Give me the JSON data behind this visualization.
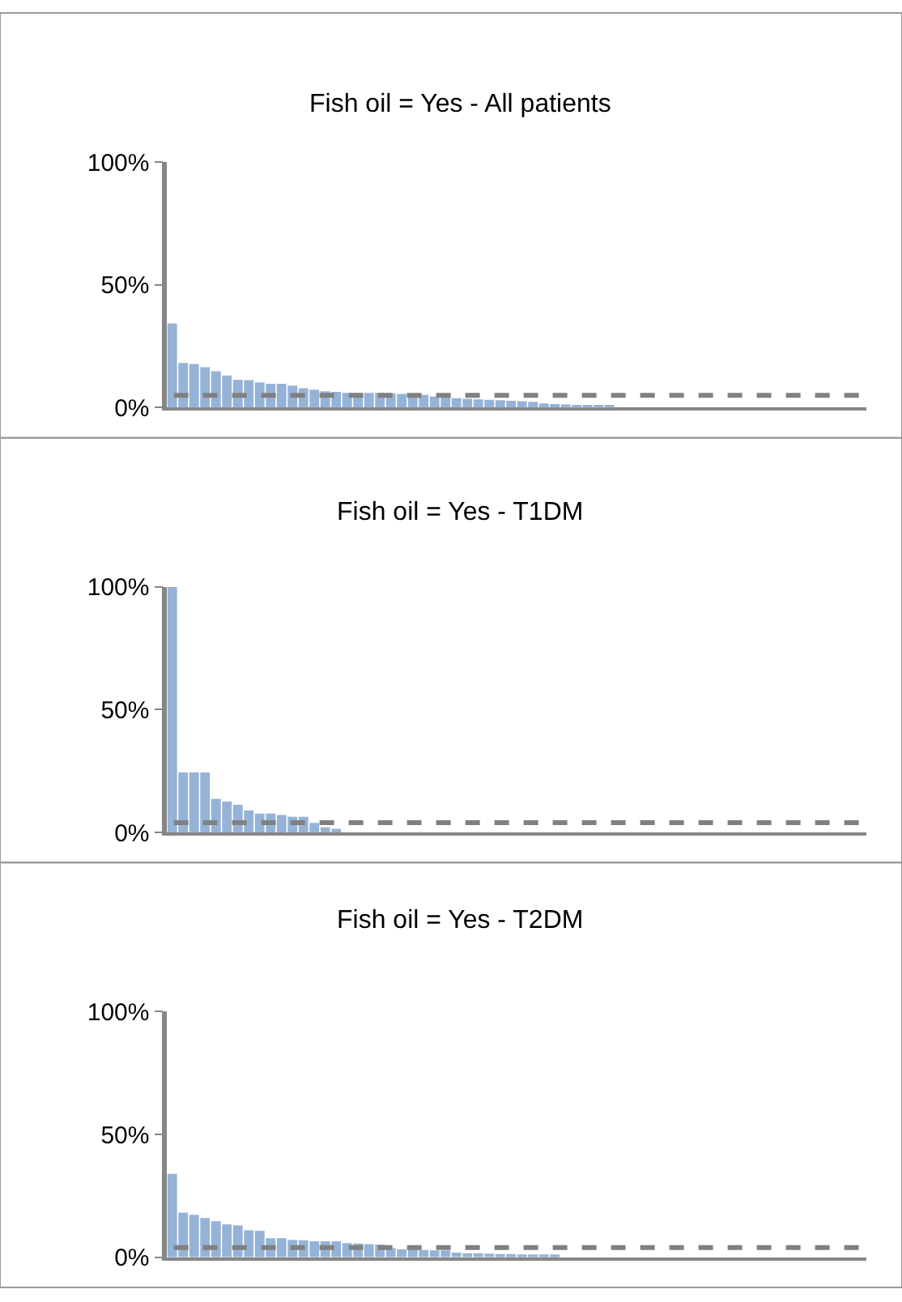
{
  "chart_data": [
    {
      "type": "bar",
      "title": "Fish oil = Yes - All patients",
      "categories": [
        null,
        null,
        null,
        null,
        null,
        null,
        null,
        null,
        null,
        null,
        null,
        null,
        null,
        null,
        null,
        null,
        null,
        null,
        null,
        null,
        null,
        null,
        null,
        null,
        null,
        null,
        null,
        null,
        null,
        null,
        null,
        null,
        null,
        null,
        null,
        null,
        null,
        null,
        null,
        null,
        null,
        null,
        null,
        null,
        null,
        null,
        null,
        null,
        null,
        null,
        null,
        null,
        null,
        null,
        null,
        null,
        null,
        null,
        null,
        null,
        null,
        null,
        null,
        null
      ],
      "values": [
        34.3,
        18.2,
        17.8,
        16.5,
        14.8,
        13.1,
        11.4,
        11.2,
        10.3,
        9.7,
        9.7,
        9.0,
        7.9,
        7.3,
        6.7,
        6.4,
        6.0,
        6.0,
        6.0,
        6.0,
        5.8,
        5.6,
        5.4,
        5.2,
        4.5,
        4.1,
        3.9,
        3.6,
        3.4,
        3.2,
        3.0,
        2.8,
        2.6,
        2.4,
        1.7,
        1.5,
        1.3,
        1.1,
        1.0,
        0.9,
        0.9,
        null,
        null,
        null,
        null,
        null,
        null,
        null,
        null,
        null,
        null,
        null,
        null,
        null,
        null,
        null,
        null,
        null,
        null,
        null,
        null,
        null,
        null,
        null
      ],
      "color": "#95b3d7",
      "ylim": [
        0,
        100
      ],
      "yticks": [
        {
          "value": 0,
          "label": "0%"
        },
        {
          "value": 50,
          "label": "50%"
        },
        {
          "value": 100,
          "label": "100%"
        }
      ],
      "ref_lines": [
        {
          "axis": "y",
          "value": 5,
          "color": "#808080",
          "line_style": "dashed"
        }
      ],
      "tick_labels": "y"
    },
    {
      "type": "bar",
      "title": "Fish oil = Yes - T1DM",
      "categories": [
        null,
        null,
        null,
        null,
        null,
        null,
        null,
        null,
        null,
        null,
        null,
        null,
        null,
        null,
        null,
        null,
        null,
        null,
        null,
        null,
        null,
        null,
        null,
        null,
        null,
        null,
        null,
        null,
        null,
        null,
        null,
        null,
        null,
        null,
        null,
        null,
        null,
        null,
        null,
        null,
        null,
        null,
        null,
        null,
        null,
        null,
        null,
        null,
        null,
        null,
        null,
        null,
        null,
        null,
        null,
        null,
        null,
        null,
        null,
        null,
        null,
        null,
        null,
        null
      ],
      "values": [
        100,
        24.4,
        24.4,
        24.4,
        13.7,
        12.6,
        11.3,
        9.0,
        7.7,
        7.7,
        7.1,
        6.4,
        6.4,
        3.9,
        2.1,
        1.5,
        null,
        null,
        null,
        null,
        null,
        null,
        null,
        null,
        null,
        null,
        null,
        null,
        null,
        null,
        null,
        null,
        null,
        null,
        null,
        null,
        null,
        null,
        null,
        null,
        null,
        null,
        null,
        null,
        null,
        null,
        null,
        null,
        null,
        null,
        null,
        null,
        null,
        null,
        null,
        null,
        null,
        null,
        null,
        null,
        null,
        null,
        null,
        null
      ],
      "color": "#95b3d7",
      "ylim": [
        0,
        100
      ],
      "yticks": [
        {
          "value": 0,
          "label": "0%"
        },
        {
          "value": 50,
          "label": "50%"
        },
        {
          "value": 100,
          "label": "100%"
        }
      ],
      "ref_lines": [
        {
          "axis": "y",
          "value": 4,
          "color": "#808080",
          "line_style": "dashed"
        }
      ],
      "tick_labels": "y"
    },
    {
      "type": "bar",
      "title": "Fish oil = Yes - T2DM",
      "categories": [
        null,
        null,
        null,
        null,
        null,
        null,
        null,
        null,
        null,
        null,
        null,
        null,
        null,
        null,
        null,
        null,
        null,
        null,
        null,
        null,
        null,
        null,
        null,
        null,
        null,
        null,
        null,
        null,
        null,
        null,
        null,
        null,
        null,
        null,
        null,
        null,
        null,
        null,
        null,
        null,
        null,
        null,
        null,
        null,
        null,
        null,
        null,
        null,
        null,
        null,
        null,
        null,
        null,
        null,
        null,
        null,
        null,
        null,
        null,
        null,
        null,
        null,
        null,
        null
      ],
      "values": [
        34.0,
        18.2,
        17.3,
        16.0,
        14.7,
        13.4,
        13.0,
        11.0,
        10.8,
        7.8,
        7.8,
        7.1,
        6.9,
        6.5,
        6.5,
        6.5,
        5.8,
        5.6,
        5.4,
        5.2,
        3.7,
        3.2,
        3.2,
        3.0,
        2.8,
        2.8,
        1.9,
        1.7,
        1.7,
        1.5,
        1.3,
        1.3,
        1.1,
        0.9,
        0.9,
        0.9,
        null,
        null,
        null,
        null,
        null,
        null,
        null,
        null,
        null,
        null,
        null,
        null,
        null,
        null,
        null,
        null,
        null,
        null,
        null,
        null,
        null,
        null,
        null,
        null,
        null,
        null,
        null,
        null
      ],
      "color": "#95b3d7",
      "ylim": [
        0,
        100
      ],
      "yticks": [
        {
          "value": 0,
          "label": "0%"
        },
        {
          "value": 50,
          "label": "50%"
        },
        {
          "value": 100,
          "label": "100%"
        }
      ],
      "ref_lines": [
        {
          "axis": "y",
          "value": 4,
          "color": "#808080",
          "line_style": "dashed"
        }
      ],
      "tick_labels": "y"
    }
  ]
}
